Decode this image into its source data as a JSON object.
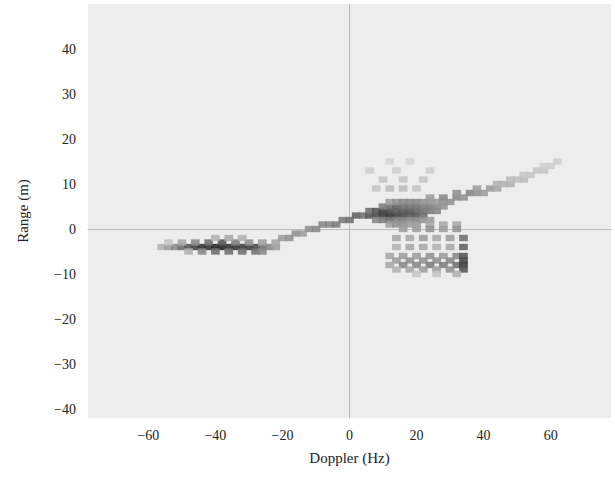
{
  "chart_data": {
    "type": "heatmap",
    "xlabel": "Doppler (Hz)",
    "ylabel": "Range (m)",
    "xlim": [
      -78,
      78
    ],
    "ylim": [
      -42,
      50
    ],
    "xticks": [
      {
        "value": -60,
        "label": "−60"
      },
      {
        "value": -40,
        "label": "−40"
      },
      {
        "value": -20,
        "label": "−20"
      },
      0,
      20,
      40,
      60
    ],
    "yticks": [
      {
        "value": -40,
        "label": "−40"
      },
      {
        "value": -30,
        "label": "−30"
      },
      {
        "value": -20,
        "label": "−20"
      },
      {
        "value": -10,
        "label": "−10"
      },
      0,
      10,
      20,
      30,
      40
    ],
    "grid": false,
    "zlim": [
      0,
      1
    ],
    "cells": [
      [
        -56,
        -4,
        0.3
      ],
      [
        -54,
        -4,
        0.4
      ],
      [
        -52,
        -4,
        0.5
      ],
      [
        -50,
        -4,
        0.6
      ],
      [
        -48,
        -4,
        0.7
      ],
      [
        -46,
        -4,
        0.8
      ],
      [
        -44,
        -4,
        0.85
      ],
      [
        -42,
        -4,
        0.85
      ],
      [
        -40,
        -4,
        0.9
      ],
      [
        -38,
        -4,
        0.9
      ],
      [
        -36,
        -4,
        0.85
      ],
      [
        -34,
        -4,
        0.85
      ],
      [
        -32,
        -4,
        0.8
      ],
      [
        -30,
        -4,
        0.8
      ],
      [
        -28,
        -4,
        0.75
      ],
      [
        -26,
        -4,
        0.6
      ],
      [
        -24,
        -4,
        0.5
      ],
      [
        -22,
        -4,
        0.4
      ],
      [
        -54,
        -3,
        0.2
      ],
      [
        -50,
        -3,
        0.35
      ],
      [
        -46,
        -3,
        0.5
      ],
      [
        -42,
        -3,
        0.6
      ],
      [
        -38,
        -3,
        0.7
      ],
      [
        -34,
        -3,
        0.55
      ],
      [
        -30,
        -3,
        0.45
      ],
      [
        -26,
        -3,
        0.4
      ],
      [
        -22,
        -3,
        0.35
      ],
      [
        -48,
        -5,
        0.3
      ],
      [
        -44,
        -5,
        0.5
      ],
      [
        -40,
        -5,
        0.6
      ],
      [
        -36,
        -5,
        0.6
      ],
      [
        -32,
        -5,
        0.6
      ],
      [
        -28,
        -5,
        0.6
      ],
      [
        -26,
        -5,
        0.5
      ],
      [
        -40,
        -2,
        0.3
      ],
      [
        -36,
        -2,
        0.35
      ],
      [
        -32,
        -2,
        0.3
      ],
      [
        -20,
        -2,
        0.4
      ],
      [
        -18,
        -2,
        0.45
      ],
      [
        -16,
        -1,
        0.45
      ],
      [
        -14,
        -1,
        0.4
      ],
      [
        -12,
        0,
        0.45
      ],
      [
        -10,
        0,
        0.5
      ],
      [
        -8,
        1,
        0.5
      ],
      [
        -6,
        1,
        0.5
      ],
      [
        -4,
        1,
        0.55
      ],
      [
        -2,
        2,
        0.55
      ],
      [
        0,
        2,
        0.6
      ],
      [
        2,
        3,
        0.65
      ],
      [
        4,
        3,
        0.6
      ],
      [
        6,
        3,
        0.7
      ],
      [
        8,
        3,
        0.75
      ],
      [
        10,
        3,
        0.8
      ],
      [
        12,
        3,
        0.85
      ],
      [
        14,
        3,
        0.8
      ],
      [
        16,
        3,
        0.75
      ],
      [
        18,
        3,
        0.7
      ],
      [
        20,
        3,
        0.7
      ],
      [
        22,
        3,
        0.6
      ],
      [
        6,
        4,
        0.6
      ],
      [
        8,
        4,
        0.7
      ],
      [
        10,
        4,
        0.8
      ],
      [
        12,
        4,
        0.75
      ],
      [
        14,
        4,
        0.7
      ],
      [
        16,
        4,
        0.7
      ],
      [
        18,
        4,
        0.7
      ],
      [
        20,
        4,
        0.65
      ],
      [
        22,
        4,
        0.6
      ],
      [
        24,
        4,
        0.55
      ],
      [
        26,
        4,
        0.5
      ],
      [
        10,
        5,
        0.55
      ],
      [
        12,
        5,
        0.6
      ],
      [
        14,
        5,
        0.65
      ],
      [
        16,
        5,
        0.6
      ],
      [
        18,
        5,
        0.6
      ],
      [
        20,
        5,
        0.6
      ],
      [
        22,
        5,
        0.55
      ],
      [
        24,
        5,
        0.55
      ],
      [
        26,
        5,
        0.5
      ],
      [
        28,
        5,
        0.45
      ],
      [
        12,
        6,
        0.4
      ],
      [
        14,
        6,
        0.45
      ],
      [
        16,
        6,
        0.5
      ],
      [
        18,
        6,
        0.5
      ],
      [
        20,
        6,
        0.5
      ],
      [
        22,
        6,
        0.45
      ],
      [
        24,
        6,
        0.45
      ],
      [
        26,
        6,
        0.4
      ],
      [
        28,
        6,
        0.45
      ],
      [
        30,
        6,
        0.45
      ],
      [
        8,
        2,
        0.5
      ],
      [
        10,
        2,
        0.55
      ],
      [
        12,
        2,
        0.6
      ],
      [
        14,
        2,
        0.55
      ],
      [
        16,
        2,
        0.55
      ],
      [
        18,
        2,
        0.5
      ],
      [
        20,
        2,
        0.5
      ],
      [
        22,
        2,
        0.45
      ],
      [
        24,
        2,
        0.4
      ],
      [
        12,
        1,
        0.4
      ],
      [
        14,
        1,
        0.45
      ],
      [
        16,
        1,
        0.45
      ],
      [
        18,
        1,
        0.4
      ],
      [
        20,
        1,
        0.4
      ],
      [
        24,
        1,
        0.35
      ],
      [
        28,
        1,
        0.35
      ],
      [
        32,
        1,
        0.35
      ],
      [
        24,
        7,
        0.4
      ],
      [
        28,
        7,
        0.5
      ],
      [
        32,
        7,
        0.5
      ],
      [
        34,
        7,
        0.45
      ],
      [
        32,
        8,
        0.45
      ],
      [
        36,
        8,
        0.5
      ],
      [
        38,
        8,
        0.45
      ],
      [
        40,
        8,
        0.4
      ],
      [
        38,
        9,
        0.4
      ],
      [
        42,
        9,
        0.4
      ],
      [
        44,
        9,
        0.35
      ],
      [
        44,
        10,
        0.3
      ],
      [
        46,
        10,
        0.3
      ],
      [
        48,
        10,
        0.3
      ],
      [
        48,
        11,
        0.25
      ],
      [
        50,
        11,
        0.25
      ],
      [
        52,
        11,
        0.25
      ],
      [
        52,
        12,
        0.2
      ],
      [
        54,
        12,
        0.2
      ],
      [
        56,
        13,
        0.2
      ],
      [
        58,
        13,
        0.2
      ],
      [
        58,
        14,
        0.15
      ],
      [
        60,
        14,
        0.15
      ],
      [
        62,
        15,
        0.15
      ],
      [
        16,
        0,
        0.4
      ],
      [
        20,
        0,
        0.4
      ],
      [
        24,
        0,
        0.45
      ],
      [
        28,
        0,
        0.4
      ],
      [
        32,
        0,
        0.45
      ],
      [
        14,
        -2,
        0.35
      ],
      [
        18,
        -2,
        0.35
      ],
      [
        22,
        -2,
        0.4
      ],
      [
        26,
        -2,
        0.35
      ],
      [
        30,
        -2,
        0.4
      ],
      [
        34,
        -2,
        0.6
      ],
      [
        14,
        -4,
        0.3
      ],
      [
        18,
        -4,
        0.35
      ],
      [
        22,
        -4,
        0.35
      ],
      [
        26,
        -4,
        0.3
      ],
      [
        30,
        -4,
        0.35
      ],
      [
        34,
        -4,
        0.65
      ],
      [
        12,
        -6,
        0.35
      ],
      [
        16,
        -6,
        0.4
      ],
      [
        20,
        -6,
        0.4
      ],
      [
        24,
        -6,
        0.45
      ],
      [
        28,
        -6,
        0.4
      ],
      [
        32,
        -6,
        0.5
      ],
      [
        34,
        -6,
        0.7
      ],
      [
        14,
        -7,
        0.4
      ],
      [
        18,
        -7,
        0.45
      ],
      [
        22,
        -7,
        0.45
      ],
      [
        26,
        -7,
        0.45
      ],
      [
        30,
        -7,
        0.5
      ],
      [
        34,
        -7,
        0.75
      ],
      [
        12,
        -8,
        0.35
      ],
      [
        16,
        -8,
        0.5
      ],
      [
        20,
        -8,
        0.5
      ],
      [
        24,
        -8,
        0.55
      ],
      [
        28,
        -8,
        0.55
      ],
      [
        32,
        -8,
        0.6
      ],
      [
        34,
        -8,
        0.8
      ],
      [
        14,
        -9,
        0.3
      ],
      [
        18,
        -9,
        0.35
      ],
      [
        22,
        -9,
        0.4
      ],
      [
        26,
        -9,
        0.4
      ],
      [
        30,
        -9,
        0.45
      ],
      [
        34,
        -9,
        0.7
      ],
      [
        20,
        -10,
        0.2
      ],
      [
        26,
        -10,
        0.2
      ],
      [
        32,
        -10,
        0.3
      ],
      [
        8,
        9,
        0.2
      ],
      [
        12,
        9,
        0.25
      ],
      [
        16,
        9,
        0.25
      ],
      [
        20,
        9,
        0.2
      ],
      [
        10,
        11,
        0.2
      ],
      [
        16,
        11,
        0.2
      ],
      [
        22,
        11,
        0.2
      ],
      [
        6,
        13,
        0.15
      ],
      [
        14,
        13,
        0.15
      ],
      [
        24,
        13,
        0.15
      ],
      [
        12,
        15,
        0.12
      ],
      [
        18,
        15,
        0.12
      ]
    ]
  }
}
